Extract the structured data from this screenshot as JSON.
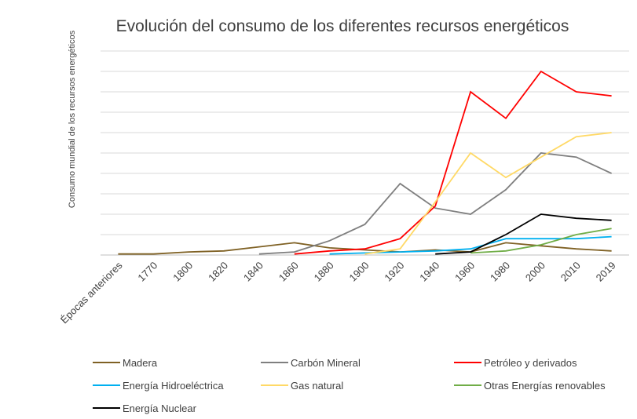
{
  "chart_data": {
    "type": "line",
    "title": "Evolución del consumo de los diferentes recursos energéticos",
    "y_label": "Consumo mundial de los recursos energéticos",
    "categories": [
      "Épocas anteriores",
      "1770",
      "1800",
      "1820",
      "1840",
      "1860",
      "1880",
      "1900",
      "1920",
      "1940",
      "1960",
      "1980",
      "2000",
      "2010",
      "2019"
    ],
    "ylim": [
      0,
      10
    ],
    "yticks": [
      0,
      1,
      2,
      3,
      4,
      5,
      6,
      7,
      8,
      9,
      10
    ],
    "grid": true,
    "series": [
      {
        "name": "Madera",
        "color": "#7f6124",
        "values": [
          0.05,
          0.05,
          0.15,
          0.2,
          0.4,
          0.6,
          0.35,
          0.25,
          0.15,
          0.25,
          0.15,
          0.6,
          0.45,
          0.3,
          0.2
        ]
      },
      {
        "name": "Carbón Mineral",
        "color": "#7f7f7f",
        "values": [
          null,
          null,
          null,
          null,
          0.05,
          0.15,
          0.7,
          1.5,
          3.5,
          2.3,
          2,
          3.2,
          5,
          4.8,
          4
        ]
      },
      {
        "name": "Petróleo y derivados",
        "color": "#ff0000",
        "values": [
          null,
          null,
          null,
          null,
          null,
          0.05,
          0.2,
          0.3,
          0.8,
          2.4,
          8,
          6.7,
          9,
          8,
          7.8
        ]
      },
      {
        "name": "Energía Hidroeléctrica",
        "color": "#00b0f0",
        "values": [
          null,
          null,
          null,
          null,
          null,
          null,
          0.05,
          0.1,
          0.15,
          0.2,
          0.3,
          0.8,
          0.8,
          0.8,
          0.9
        ]
      },
      {
        "name": "Gas natural",
        "color": "#ffd966",
        "values": [
          null,
          null,
          null,
          null,
          null,
          null,
          null,
          0.05,
          0.3,
          2.6,
          5,
          3.8,
          4.8,
          5.8,
          6
        ]
      },
      {
        "name": "Otras Energías renovables",
        "color": "#70ad47",
        "values": [
          null,
          null,
          null,
          null,
          null,
          null,
          null,
          null,
          null,
          null,
          0.1,
          0.2,
          0.5,
          1,
          1.3
        ]
      },
      {
        "name": "Energía Nuclear",
        "color": "#000000",
        "values": [
          null,
          null,
          null,
          null,
          null,
          null,
          null,
          null,
          null,
          0.05,
          0.15,
          1,
          2,
          1.8,
          1.7
        ]
      }
    ]
  }
}
